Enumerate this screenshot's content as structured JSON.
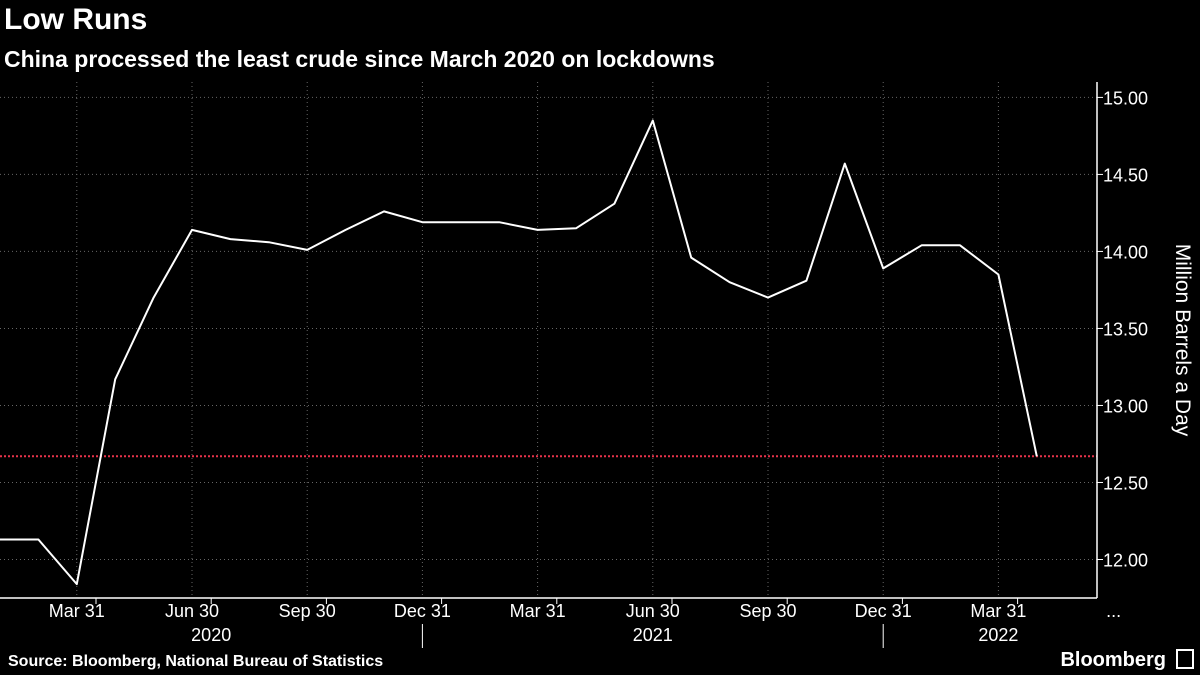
{
  "title": "Low Runs",
  "subtitle": "China processed the least crude since March 2020 on lockdowns",
  "source": "Source: Bloomberg, National Bureau of Statistics",
  "brand": "Bloomberg",
  "brand_icon": "bloomberg-terminal-icon",
  "colors": {
    "background": "#000000",
    "line": "#ffffff",
    "reference_line": "#e8334a",
    "grid": "#666666"
  },
  "chart_data": {
    "type": "line",
    "title": "Low Runs",
    "subtitle": "China processed the least crude since March 2020 on lockdowns",
    "ylabel": "Million Barrels a Day",
    "ylim": [
      11.75,
      15.1
    ],
    "y_axis_position": "right",
    "y_ticks": [
      "15.00",
      "14.50",
      "14.00",
      "13.50",
      "13.00",
      "12.50",
      "12.00"
    ],
    "x_tick_labels": [
      "Mar 31",
      "Jun 30",
      "Sep 30",
      "Dec 31",
      "Mar 31",
      "Jun 30",
      "Sep 30",
      "Dec 31",
      "Mar 31",
      "..."
    ],
    "x_year_labels": [
      "2020",
      "2021",
      "2022"
    ],
    "grid": true,
    "grid_style": "dotted",
    "reference_line": {
      "value": 12.67,
      "style": "dotted"
    },
    "series": [
      {
        "x": [
          "2020-01",
          "2020-02",
          "2020-03",
          "2020-04",
          "2020-05",
          "2020-06",
          "2020-07",
          "2020-08",
          "2020-09",
          "2020-10",
          "2020-11",
          "2020-12",
          "2021-01",
          "2021-02",
          "2021-03",
          "2021-04",
          "2021-05",
          "2021-06",
          "2021-07",
          "2021-08",
          "2021-09",
          "2021-10",
          "2021-11",
          "2021-12",
          "2022-01",
          "2022-02",
          "2022-03",
          "2022-04"
        ],
        "values": [
          12.13,
          12.13,
          11.84,
          13.17,
          13.7,
          14.14,
          14.08,
          14.06,
          14.01,
          14.14,
          14.26,
          14.19,
          14.19,
          14.19,
          14.14,
          14.15,
          14.31,
          14.85,
          13.96,
          13.8,
          13.7,
          13.81,
          14.57,
          13.89,
          14.04,
          14.04,
          13.85,
          12.67
        ]
      }
    ]
  }
}
